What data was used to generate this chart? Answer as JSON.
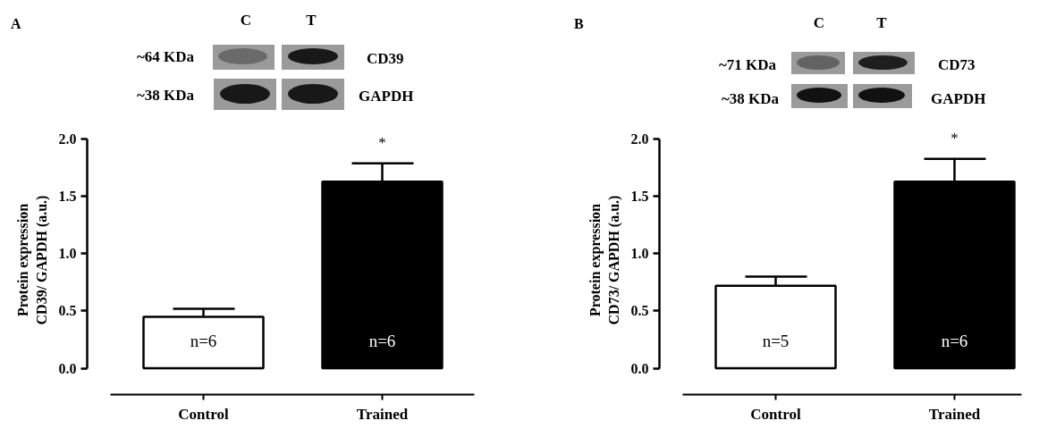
{
  "chart_data": [
    {
      "type": "bar",
      "title": "A",
      "ylabel": "Protein expression\nCD39/ GAPDH (a.u.)",
      "categories": [
        "Control",
        "Trained"
      ],
      "values": [
        0.45,
        1.63
      ],
      "colors": [
        "#ffffff",
        "#000000"
      ],
      "errors": [
        [
          0.45,
          0.52
        ],
        [
          1.63,
          1.79
        ]
      ],
      "ylim": [
        0,
        2
      ],
      "yticks": [
        {
          "value": 0,
          "label": "0.0"
        },
        {
          "value": 0.5,
          "label": "0.5"
        },
        {
          "value": 1,
          "label": "1.0"
        },
        {
          "value": 1.5,
          "label": "1.5"
        },
        {
          "value": 2,
          "label": "2.0"
        }
      ],
      "annotations": [
        "C",
        "T",
        "~64 KDa",
        "CD39",
        "~38 KDa",
        "GAPDH",
        "*",
        "n=6",
        "n=6"
      ]
    },
    {
      "type": "bar",
      "title": "B",
      "ylabel": "Protein expression\nCD73/ GAPDH (a.u.)",
      "categories": [
        "Control",
        "Trained"
      ],
      "values": [
        0.72,
        1.63
      ],
      "colors": [
        "#ffffff",
        "#000000"
      ],
      "errors": [
        [
          0.72,
          0.8
        ],
        [
          1.63,
          1.83
        ]
      ],
      "ylim": [
        0,
        2
      ],
      "yticks": [
        {
          "value": 0,
          "label": "0.0"
        },
        {
          "value": 0.5,
          "label": "0.5"
        },
        {
          "value": 1,
          "label": "1.0"
        },
        {
          "value": 1.5,
          "label": "1.5"
        },
        {
          "value": 2,
          "label": "2.0"
        }
      ],
      "annotations": [
        "C",
        "T",
        "~71 KDa",
        "CD73",
        "~38 KDa",
        "GAPDH",
        "*",
        "n=5",
        "n=6"
      ]
    }
  ]
}
